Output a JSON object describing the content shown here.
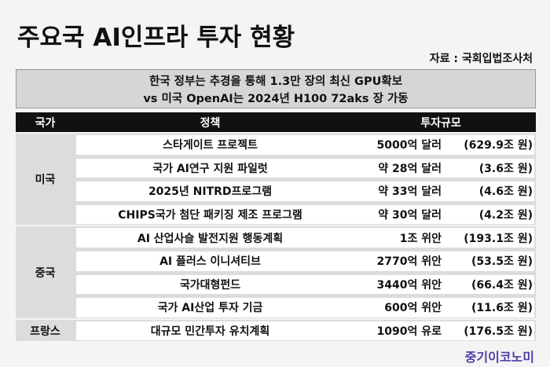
{
  "header": {
    "title": "주요국 AI인프라 투자 현황",
    "source": "자료 : 국회입법조사처"
  },
  "summary": {
    "lines": [
      "한국 정부는 추경을 통해 1.3만 장의 최신 GPU확보",
      "vs 미국 OpenAI는 2024년 H100 72aks 장 가동"
    ]
  },
  "table": {
    "columns": [
      "국가",
      "정책",
      "투자규모"
    ],
    "groups": [
      {
        "country": "미국",
        "rows": [
          {
            "policy": "스타게이트 프로젝트",
            "amount": "5000억 달러",
            "krw": "(629.9조 원)"
          },
          {
            "policy": "국가 AI연구 지원 파일럿",
            "amount": "약 28억 달러",
            "krw": "(3.6조 원)"
          },
          {
            "policy": "2025년 NITRD프로그램",
            "amount": "약 33억 달러",
            "krw": "(4.6조 원)"
          },
          {
            "policy": "CHIPS국가 첨단 패키징 제조 프로그램",
            "amount": "약 30억 달러",
            "krw": "(4.2조 원)"
          }
        ]
      },
      {
        "country": "중국",
        "rows": [
          {
            "policy": "AI 산업사슬 발전지원 행동계획",
            "amount": "1조 위안",
            "krw": "(193.1조 원)"
          },
          {
            "policy": "AI 플러스 이니셔티브",
            "amount": "2770억 위안",
            "krw": "(53.5조 원)"
          },
          {
            "policy": "국가대형펀드",
            "amount": "3440억 위안",
            "krw": "(66.4조 원)"
          },
          {
            "policy": "국가 AI산업 투자 기금",
            "amount": "600억 위안",
            "krw": "(11.6조 원)"
          }
        ]
      },
      {
        "country": "프랑스",
        "rows": [
          {
            "policy": "대규모 민간투자 유치계획",
            "amount": "1090억 유로",
            "krw": "(176.5조 원)"
          }
        ]
      }
    ]
  },
  "footer": {
    "logo": "중기이코노미"
  }
}
